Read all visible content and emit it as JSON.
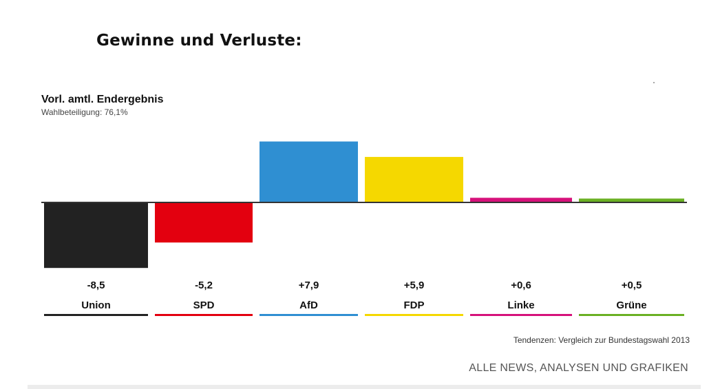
{
  "header": {
    "title": "Gewinne und Verluste:"
  },
  "chart_data": {
    "type": "bar",
    "title": "Vorl. amtl. Endergebnis",
    "subtitle": "Wahlbeteiligung: 76,1%",
    "categories": [
      "Union",
      "SPD",
      "AfD",
      "FDP",
      "Linke",
      "Grüne"
    ],
    "values": [
      -8.5,
      -5.2,
      7.9,
      5.9,
      0.6,
      0.5
    ],
    "value_labels": [
      "-8,5",
      "-5,2",
      "+7,9",
      "+5,9",
      "+0,6",
      "+0,5"
    ],
    "colors": [
      "#222222",
      "#e3000f",
      "#2f8fd2",
      "#f5d800",
      "#d6117a",
      "#6ab023"
    ],
    "xlabel": "",
    "ylabel": "",
    "grid": false,
    "legend": "none"
  },
  "footer": {
    "note": "Tendenzen: Vergleich zur Bundestagswahl 2013",
    "link_label": "ALLE NEWS, ANALYSEN UND GRAFIKEN"
  }
}
